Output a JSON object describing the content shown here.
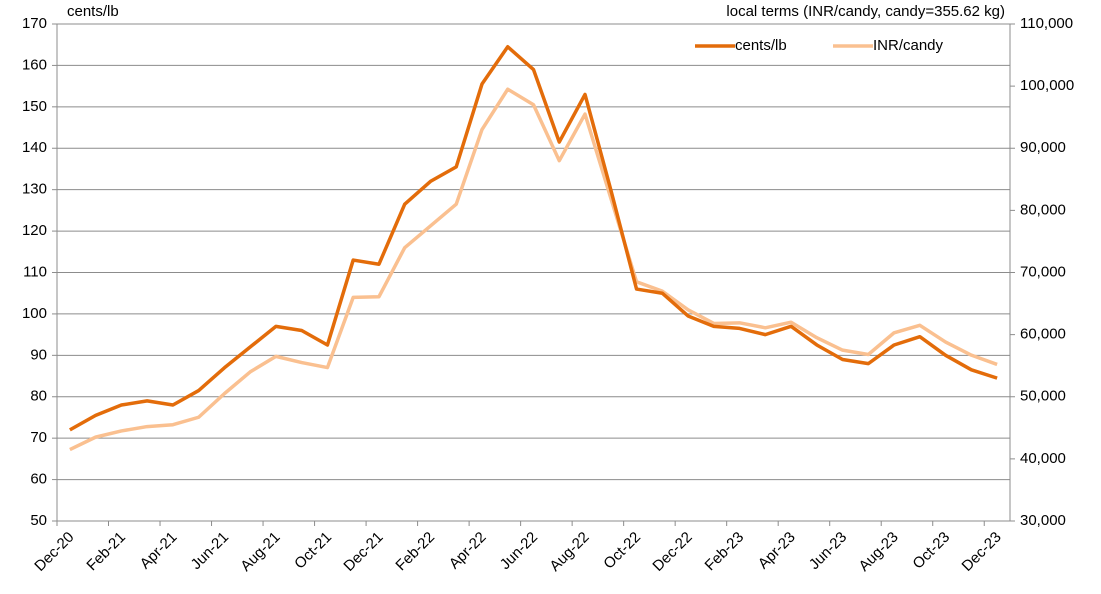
{
  "chart_data": {
    "type": "line",
    "y_label": "cents/lb",
    "y2_label": "local terms (INR/candy, candy=355.62 kg)",
    "categories": [
      "Dec-20",
      null,
      "Feb-21",
      null,
      "Apr-21",
      null,
      "Jun-21",
      null,
      "Aug-21",
      null,
      "Oct-21",
      null,
      "Dec-21",
      null,
      "Feb-22",
      null,
      "Apr-22",
      null,
      "Jun-22",
      null,
      "Aug-22",
      null,
      "Oct-22",
      null,
      "Dec-22",
      null,
      "Feb-23",
      null,
      "Apr-23",
      null,
      "Jun-23",
      null,
      "Aug-23",
      null,
      "Oct-23",
      null,
      "Dec-23"
    ],
    "series": [
      {
        "name": "cents/lb",
        "color": "#e36c0a",
        "axis": "y",
        "values": [
          72,
          75.5,
          78,
          79,
          78,
          81.5,
          87,
          92,
          97,
          96,
          92.5,
          113,
          112,
          126.5,
          132,
          135.5,
          155.5,
          164.5,
          159,
          141.5,
          153,
          130,
          106,
          105,
          99.5,
          97,
          96.5,
          95,
          97,
          92.5,
          89,
          88,
          92.5,
          94.5,
          90,
          86.5,
          84.5
        ]
      },
      {
        "name": "INR/candy",
        "color": "#fac090",
        "axis": "y2",
        "values": [
          41500,
          43500,
          44500,
          45200,
          45500,
          46700,
          50500,
          54000,
          56500,
          55500,
          54700,
          66000,
          66100,
          74000,
          77500,
          81000,
          93000,
          99500,
          97000,
          88000,
          95500,
          82000,
          68500,
          67000,
          64000,
          61800,
          61900,
          61100,
          62000,
          59500,
          57500,
          56800,
          60300,
          61500,
          58800,
          56700,
          55200
        ]
      }
    ],
    "ylim": [
      50,
      170
    ],
    "yticks": [
      50,
      60,
      70,
      80,
      90,
      100,
      110,
      120,
      130,
      140,
      150,
      160,
      170
    ],
    "y2lim": [
      30000,
      110000
    ],
    "y2ticks": [
      {
        "value": 30000,
        "label": "30,000"
      },
      {
        "value": 40000,
        "label": "40,000"
      },
      {
        "value": 50000,
        "label": "50,000"
      },
      {
        "value": 60000,
        "label": "60,000"
      },
      {
        "value": 70000,
        "label": "70,000"
      },
      {
        "value": 80000,
        "label": "80,000"
      },
      {
        "value": 90000,
        "label": "90,000"
      },
      {
        "value": 100000,
        "label": "100,000"
      },
      {
        "value": 110000,
        "label": "110,000"
      }
    ],
    "grid": true,
    "legend": "top-right"
  }
}
